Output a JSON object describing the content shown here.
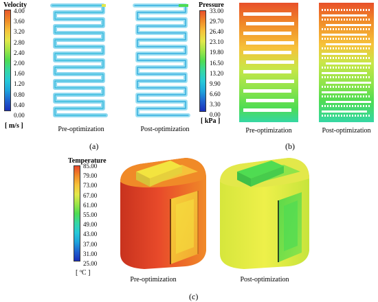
{
  "panel_a": {
    "label": "(a)",
    "legend": {
      "title": "Velocity",
      "ticks": [
        "4.00",
        "3.60",
        "3.20",
        "2.80",
        "2.40",
        "2.00",
        "1.60",
        "1.20",
        "0.80",
        "0.40",
        "0.00"
      ],
      "unit": "[ m/s ]",
      "colors": [
        "#e8582b",
        "#f08a28",
        "#f6c23a",
        "#e3e84a",
        "#9ee548",
        "#4fdc52",
        "#35d7a4",
        "#26c9d8",
        "#1ea4dc",
        "#1f63d0",
        "#1a2fb9"
      ]
    },
    "captions": [
      "Pre-optimization",
      "Post-optimization"
    ]
  },
  "panel_b": {
    "label": "(b)",
    "legend": {
      "title": "Pressure",
      "ticks": [
        "33.00",
        "29.70",
        "26.40",
        "23.10",
        "19.80",
        "16.50",
        "13.20",
        "9.90",
        "6.60",
        "3.30",
        "0.00"
      ],
      "unit": "[ kPa ]",
      "colors": [
        "#e8502a",
        "#f08a28",
        "#f6c23a",
        "#e3e84a",
        "#9ee548",
        "#4fdc52",
        "#35d7a4",
        "#26c9d8",
        "#1ea4dc",
        "#1f63d0",
        "#1a2fb9"
      ]
    },
    "captions": [
      "Pre-optimization",
      "Post-optimization"
    ]
  },
  "panel_c": {
    "label": "(c)",
    "legend": {
      "title": "Temperature",
      "ticks": [
        "85.00",
        "79.00",
        "73.00",
        "67.00",
        "61.00",
        "55.00",
        "49.00",
        "43.00",
        "37.00",
        "31.00",
        "25.00"
      ],
      "unit": "[ ºC ]",
      "colors": [
        "#e8472a",
        "#f08a28",
        "#f6c23a",
        "#e3e84a",
        "#9ee548",
        "#4fdc52",
        "#35d7a4",
        "#26c9d8",
        "#1ea4dc",
        "#1f63d0",
        "#1a2fb9"
      ]
    },
    "captions": [
      "Pre-optimization",
      "Post-optimization"
    ]
  }
}
